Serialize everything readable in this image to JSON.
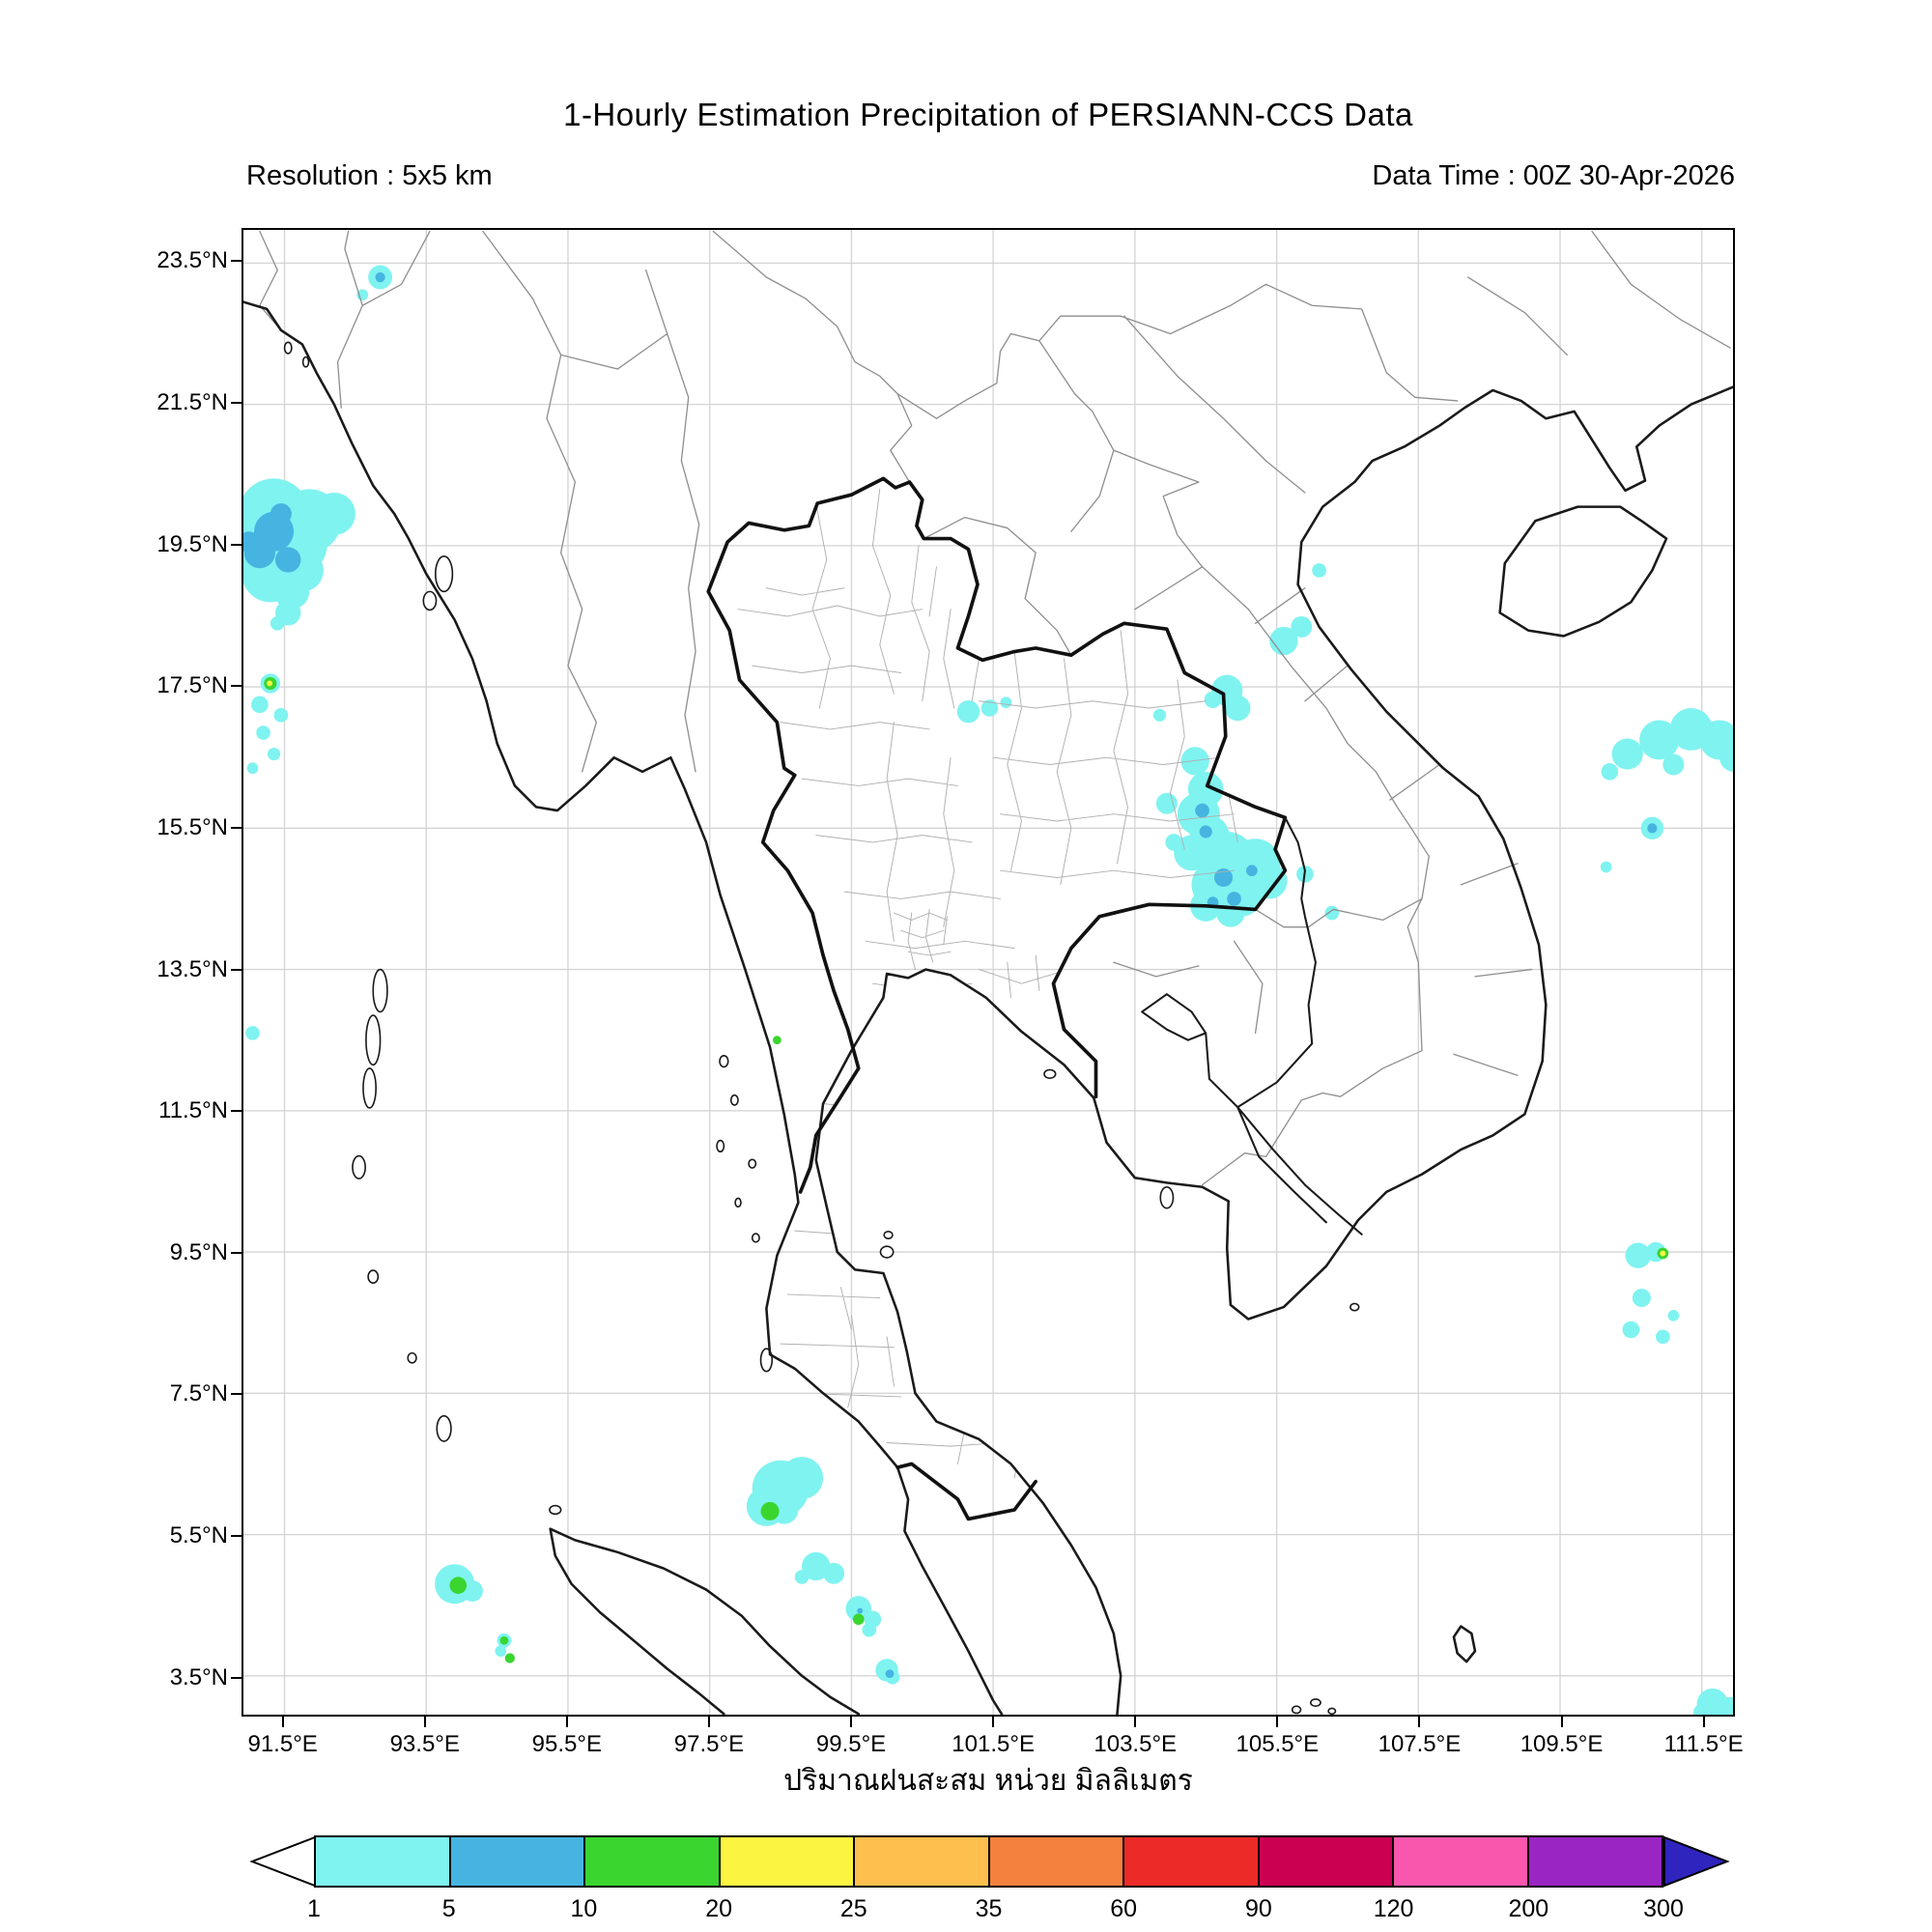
{
  "header": {
    "title": "1-Hourly Estimation Precipitation of PERSIANN-CCS Data",
    "resolution_label": "Resolution : 5x5 km",
    "data_time_label": "Data Time : 00Z 30-Apr-2026"
  },
  "map": {
    "lon_range": [
      90.92,
      111.94
    ],
    "lat_range": [
      2.95,
      23.97
    ],
    "lat_ticks": [
      {
        "value": 23.5,
        "label": "23.5°N"
      },
      {
        "value": 21.5,
        "label": "21.5°N"
      },
      {
        "value": 19.5,
        "label": "19.5°N"
      },
      {
        "value": 17.5,
        "label": "17.5°N"
      },
      {
        "value": 15.5,
        "label": "15.5°N"
      },
      {
        "value": 13.5,
        "label": "13.5°N"
      },
      {
        "value": 11.5,
        "label": "11.5°N"
      },
      {
        "value": 9.5,
        "label": "9.5°N"
      },
      {
        "value": 7.5,
        "label": "7.5°N"
      },
      {
        "value": 5.5,
        "label": "5.5°N"
      },
      {
        "value": 3.5,
        "label": "3.5°N"
      }
    ],
    "lon_ticks": [
      {
        "value": 91.5,
        "label": "91.5°E"
      },
      {
        "value": 93.5,
        "label": "93.5°E"
      },
      {
        "value": 95.5,
        "label": "95.5°E"
      },
      {
        "value": 97.5,
        "label": "97.5°E"
      },
      {
        "value": 99.5,
        "label": "99.5°E"
      },
      {
        "value": 101.5,
        "label": "101.5°E"
      },
      {
        "value": 103.5,
        "label": "103.5°E"
      },
      {
        "value": 105.5,
        "label": "105.5°E"
      },
      {
        "value": 107.5,
        "label": "107.5°E"
      },
      {
        "value": 109.5,
        "label": "109.5°E"
      },
      {
        "value": 111.5,
        "label": "111.5°E"
      }
    ]
  },
  "colorbar": {
    "caption": "ปริมาณฝนสะสม หน่วย มิลลิเมตร",
    "tick_labels": [
      "1",
      "5",
      "10",
      "20",
      "25",
      "35",
      "60",
      "90",
      "120",
      "200",
      "300"
    ],
    "segment_colors": [
      "#ffffff",
      "#7ff3f0",
      "#46b4e1",
      "#3ad52f",
      "#fbf441",
      "#fdc04e",
      "#f4813d",
      "#ec2a27",
      "#cb0051",
      "#f956ae",
      "#9a25c2"
    ],
    "left_arrow_color": "#ffffff",
    "right_arrow_color": "#2f24bd"
  },
  "precipitation": {
    "patches": [
      [
        92.85,
        23.3,
        0.17,
        1
      ],
      [
        92.6,
        23.05,
        0.08,
        1
      ],
      [
        92.85,
        23.3,
        0.07,
        2
      ],
      [
        91.35,
        19.95,
        0.5,
        1
      ],
      [
        91.85,
        19.85,
        0.45,
        1
      ],
      [
        92.2,
        19.95,
        0.3,
        1
      ],
      [
        91.15,
        19.5,
        0.55,
        1
      ],
      [
        91.7,
        19.5,
        0.4,
        1
      ],
      [
        91.3,
        19.1,
        0.4,
        1
      ],
      [
        91.75,
        19.15,
        0.3,
        1
      ],
      [
        91.0,
        19.8,
        0.35,
        1
      ],
      [
        91.6,
        18.85,
        0.25,
        1
      ],
      [
        91.35,
        19.7,
        0.28,
        2
      ],
      [
        91.15,
        19.4,
        0.22,
        2
      ],
      [
        91.55,
        19.3,
        0.18,
        2
      ],
      [
        91.0,
        19.55,
        0.15,
        2
      ],
      [
        91.45,
        19.95,
        0.15,
        2
      ],
      [
        91.55,
        18.55,
        0.18,
        1
      ],
      [
        91.4,
        18.4,
        0.1,
        1
      ],
      [
        91.3,
        17.55,
        0.14,
        1
      ],
      [
        91.3,
        17.55,
        0.09,
        3
      ],
      [
        91.29,
        17.55,
        0.04,
        4
      ],
      [
        91.15,
        17.25,
        0.12,
        1
      ],
      [
        91.45,
        17.1,
        0.1,
        1
      ],
      [
        91.2,
        16.85,
        0.1,
        1
      ],
      [
        91.35,
        16.55,
        0.09,
        1
      ],
      [
        91.05,
        16.35,
        0.08,
        1
      ],
      [
        101.15,
        17.15,
        0.16,
        1
      ],
      [
        101.45,
        17.2,
        0.12,
        1
      ],
      [
        101.68,
        17.28,
        0.08,
        1
      ],
      [
        104.8,
        17.45,
        0.22,
        1
      ],
      [
        104.95,
        17.2,
        0.18,
        1
      ],
      [
        104.6,
        17.32,
        0.12,
        1
      ],
      [
        103.85,
        17.1,
        0.09,
        1
      ],
      [
        104.35,
        16.45,
        0.2,
        1
      ],
      [
        104.5,
        16.05,
        0.25,
        1
      ],
      [
        104.4,
        15.7,
        0.3,
        1
      ],
      [
        104.55,
        15.4,
        0.28,
        1
      ],
      [
        104.3,
        15.15,
        0.25,
        1
      ],
      [
        103.95,
        15.85,
        0.15,
        1
      ],
      [
        104.05,
        15.3,
        0.12,
        1
      ],
      [
        104.8,
        15.05,
        0.4,
        1
      ],
      [
        105.2,
        15.0,
        0.35,
        1
      ],
      [
        104.65,
        14.7,
        0.35,
        1
      ],
      [
        105.0,
        14.55,
        0.3,
        1
      ],
      [
        105.4,
        14.75,
        0.25,
        1
      ],
      [
        104.5,
        14.4,
        0.22,
        1
      ],
      [
        104.85,
        14.3,
        0.2,
        1
      ],
      [
        104.45,
        15.75,
        0.1,
        2
      ],
      [
        104.5,
        15.45,
        0.09,
        2
      ],
      [
        104.75,
        14.8,
        0.13,
        2
      ],
      [
        104.9,
        14.5,
        0.1,
        2
      ],
      [
        104.6,
        14.45,
        0.08,
        2
      ],
      [
        105.15,
        14.9,
        0.08,
        2
      ],
      [
        105.9,
        14.85,
        0.12,
        1
      ],
      [
        106.28,
        14.3,
        0.1,
        1
      ],
      [
        105.6,
        18.15,
        0.2,
        1
      ],
      [
        105.85,
        18.35,
        0.15,
        1
      ],
      [
        106.1,
        19.15,
        0.1,
        1
      ],
      [
        110.45,
        16.55,
        0.22,
        1
      ],
      [
        110.9,
        16.75,
        0.28,
        1
      ],
      [
        111.35,
        16.9,
        0.3,
        1
      ],
      [
        111.75,
        16.75,
        0.28,
        1
      ],
      [
        111.95,
        16.5,
        0.2,
        1
      ],
      [
        110.2,
        16.3,
        0.12,
        1
      ],
      [
        111.1,
        16.4,
        0.15,
        1
      ],
      [
        110.8,
        15.5,
        0.16,
        1
      ],
      [
        110.8,
        15.5,
        0.07,
        2
      ],
      [
        110.15,
        14.95,
        0.08,
        1
      ],
      [
        110.6,
        9.45,
        0.18,
        1
      ],
      [
        110.85,
        9.5,
        0.14,
        1
      ],
      [
        110.95,
        9.48,
        0.08,
        3
      ],
      [
        110.95,
        9.48,
        0.04,
        4
      ],
      [
        110.65,
        8.85,
        0.13,
        1
      ],
      [
        110.5,
        8.4,
        0.12,
        1
      ],
      [
        110.95,
        8.3,
        0.1,
        1
      ],
      [
        111.1,
        8.6,
        0.08,
        1
      ],
      [
        91.05,
        12.6,
        0.1,
        1
      ],
      [
        98.45,
        12.5,
        0.06,
        3
      ],
      [
        98.5,
        6.15,
        0.4,
        1
      ],
      [
        98.8,
        6.3,
        0.3,
        1
      ],
      [
        98.3,
        5.9,
        0.28,
        1
      ],
      [
        98.55,
        5.85,
        0.2,
        1
      ],
      [
        98.35,
        5.83,
        0.13,
        3
      ],
      [
        98.34,
        5.82,
        0.06,
        2
      ],
      [
        99.0,
        5.05,
        0.2,
        1
      ],
      [
        99.25,
        4.95,
        0.15,
        1
      ],
      [
        98.8,
        4.9,
        0.1,
        1
      ],
      [
        93.9,
        4.8,
        0.28,
        1
      ],
      [
        94.15,
        4.7,
        0.15,
        1
      ],
      [
        93.95,
        4.78,
        0.12,
        3
      ],
      [
        93.95,
        4.78,
        0.05,
        2
      ],
      [
        94.6,
        4.0,
        0.1,
        1
      ],
      [
        94.6,
        4.0,
        0.06,
        3
      ],
      [
        94.68,
        3.75,
        0.07,
        3
      ],
      [
        94.55,
        3.85,
        0.08,
        1
      ],
      [
        99.6,
        4.45,
        0.18,
        1
      ],
      [
        99.8,
        4.3,
        0.12,
        1
      ],
      [
        99.6,
        4.3,
        0.08,
        3
      ],
      [
        99.75,
        4.15,
        0.1,
        1
      ],
      [
        99.62,
        4.42,
        0.04,
        2
      ],
      [
        100.0,
        3.58,
        0.16,
        1
      ],
      [
        100.08,
        3.48,
        0.1,
        1
      ],
      [
        100.04,
        3.53,
        0.06,
        2
      ],
      [
        111.65,
        3.1,
        0.22,
        1
      ],
      [
        111.9,
        3.0,
        0.2,
        1
      ],
      [
        111.5,
        2.98,
        0.12,
        1
      ]
    ]
  }
}
